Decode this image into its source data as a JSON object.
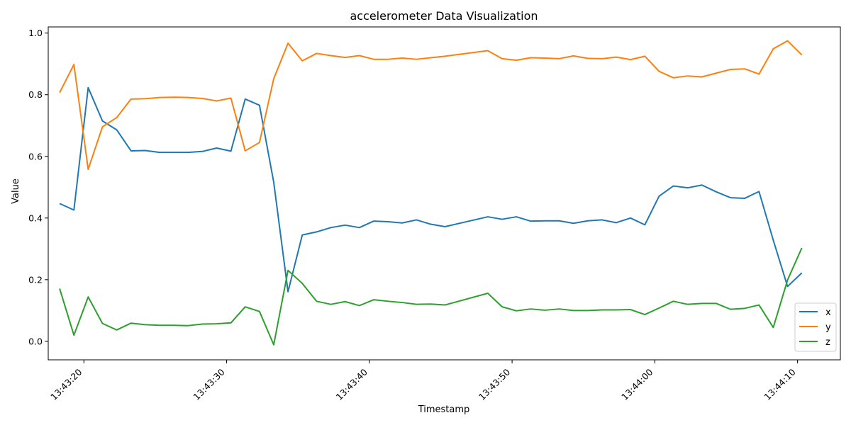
{
  "chart_data": {
    "type": "line",
    "title": "accelerometer Data Visualization",
    "xlabel": "Timestamp",
    "ylabel": "Value",
    "x_tick_labels": [
      "13:43:20",
      "13:43:30",
      "13:43:40",
      "13:43:50",
      "13:44:00",
      "13:44:10"
    ],
    "x_tick_values": [
      "13:43:20",
      "13:43:30",
      "13:43:40",
      "13:43:50",
      "13:44:00",
      "13:44:10"
    ],
    "y_tick_labels": [
      "0.0",
      "0.2",
      "0.4",
      "0.6",
      "0.8",
      "1.0"
    ],
    "y_tick_values": [
      0.0,
      0.2,
      0.4,
      0.6,
      0.8,
      1.0
    ],
    "xlim": [
      "13:43:17.5",
      "13:44:13.0"
    ],
    "ylim": [
      -0.06,
      1.02
    ],
    "grid": false,
    "legend_position": "lower right",
    "x": [
      "13:43:18.3",
      "13:43:19.3",
      "13:43:20.3",
      "13:43:21.3",
      "13:43:22.3",
      "13:43:23.3",
      "13:43:24.3",
      "13:43:25.3",
      "13:43:26.3",
      "13:43:27.3",
      "13:43:28.3",
      "13:43:29.3",
      "13:43:30.3",
      "13:43:31.3",
      "13:43:32.3",
      "13:43:33.3",
      "13:43:34.3",
      "13:43:35.3",
      "13:43:36.3",
      "13:43:37.3",
      "13:43:38.3",
      "13:43:39.3",
      "13:43:40.3",
      "13:43:41.3",
      "13:43:42.3",
      "13:43:43.3",
      "13:43:44.3",
      "13:43:45.3",
      "13:43:48.3",
      "13:43:49.3",
      "13:43:50.3",
      "13:43:51.3",
      "13:43:52.3",
      "13:43:53.3",
      "13:43:54.3",
      "13:43:55.3",
      "13:43:56.3",
      "13:43:57.3",
      "13:43:58.3",
      "13:43:59.3",
      "13:44:00.3",
      "13:44:01.3",
      "13:44:02.3",
      "13:44:03.3",
      "13:44:04.3",
      "13:44:05.3",
      "13:44:06.3",
      "13:44:07.3",
      "13:44:08.3",
      "13:44:09.3",
      "13:44:10.3"
    ],
    "series": [
      {
        "name": "x",
        "color": "#1f77b4",
        "values": [
          0.447,
          0.426,
          0.823,
          0.715,
          0.686,
          0.618,
          0.619,
          0.613,
          0.613,
          0.613,
          0.616,
          0.627,
          0.617,
          0.786,
          0.766,
          0.516,
          0.161,
          0.345,
          0.355,
          0.369,
          0.377,
          0.369,
          0.39,
          0.388,
          0.384,
          0.394,
          0.38,
          0.372,
          0.404,
          0.396,
          0.404,
          0.39,
          0.391,
          0.391,
          0.383,
          0.391,
          0.394,
          0.385,
          0.4,
          0.378,
          0.471,
          0.504,
          0.498,
          0.507,
          0.485,
          0.466,
          0.464,
          0.486,
          0.328,
          0.178,
          0.222
        ]
      },
      {
        "name": "y",
        "color": "#ff7f0e",
        "values": [
          0.807,
          0.898,
          0.558,
          0.696,
          0.726,
          0.786,
          0.787,
          0.791,
          0.792,
          0.791,
          0.788,
          0.78,
          0.789,
          0.618,
          0.645,
          0.852,
          0.967,
          0.91,
          0.934,
          0.927,
          0.921,
          0.927,
          0.915,
          0.915,
          0.919,
          0.915,
          0.92,
          0.925,
          0.943,
          0.917,
          0.912,
          0.92,
          0.919,
          0.917,
          0.926,
          0.918,
          0.917,
          0.922,
          0.914,
          0.925,
          0.876,
          0.855,
          0.861,
          0.858,
          0.87,
          0.882,
          0.884,
          0.867,
          0.949,
          0.975,
          0.929
        ]
      },
      {
        "name": "z",
        "color": "#2ca02c",
        "values": [
          0.171,
          0.02,
          0.144,
          0.058,
          0.037,
          0.059,
          0.054,
          0.052,
          0.052,
          0.051,
          0.056,
          0.057,
          0.06,
          0.112,
          0.097,
          -0.011,
          0.23,
          0.188,
          0.13,
          0.12,
          0.129,
          0.116,
          0.135,
          0.13,
          0.126,
          0.12,
          0.121,
          0.118,
          0.156,
          0.112,
          0.099,
          0.105,
          0.101,
          0.105,
          0.1,
          0.1,
          0.102,
          0.102,
          0.103,
          0.087,
          0.108,
          0.13,
          0.12,
          0.123,
          0.123,
          0.104,
          0.107,
          0.118,
          0.045,
          0.199,
          0.303
        ]
      }
    ]
  }
}
